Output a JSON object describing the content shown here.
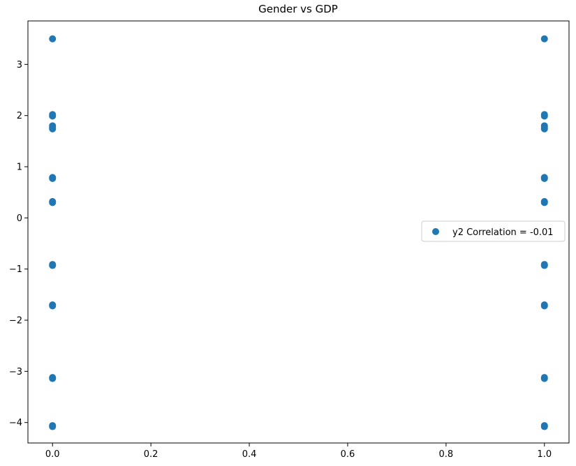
{
  "chart_data": {
    "type": "scatter",
    "title": "Gender vs GDP",
    "xlabel": "",
    "ylabel": "",
    "xlim": [
      -0.05,
      1.05
    ],
    "ylim": [
      -4.4,
      3.85
    ],
    "x_ticks": [
      {
        "value": 0.0,
        "label": "0.0"
      },
      {
        "value": 0.2,
        "label": "0.2"
      },
      {
        "value": 0.4,
        "label": "0.4"
      },
      {
        "value": 0.6,
        "label": "0.6"
      },
      {
        "value": 0.8,
        "label": "0.8"
      },
      {
        "value": 1.0,
        "label": "1.0"
      }
    ],
    "y_ticks": [
      {
        "value": -4,
        "label": "−4"
      },
      {
        "value": -3,
        "label": "−3"
      },
      {
        "value": -2,
        "label": "−2"
      },
      {
        "value": -1,
        "label": "−1"
      },
      {
        "value": 0,
        "label": "0"
      },
      {
        "value": 1,
        "label": "1"
      },
      {
        "value": 2,
        "label": "2"
      },
      {
        "value": 3,
        "label": "3"
      }
    ],
    "grid": false,
    "legend": {
      "placement": "center-right",
      "label": "y2 Correlation = -0.01"
    },
    "series": [
      {
        "color": "#1f77b4",
        "points": [
          {
            "x": 0,
            "y": 3.5
          },
          {
            "x": 0,
            "y": 2.02
          },
          {
            "x": 0,
            "y": 1.99
          },
          {
            "x": 0,
            "y": 1.8
          },
          {
            "x": 0,
            "y": 1.77
          },
          {
            "x": 0,
            "y": 1.74
          },
          {
            "x": 0,
            "y": 0.79
          },
          {
            "x": 0,
            "y": 0.77
          },
          {
            "x": 0,
            "y": 0.32
          },
          {
            "x": 0,
            "y": 0.3
          },
          {
            "x": 0,
            "y": -0.91
          },
          {
            "x": 0,
            "y": -0.93
          },
          {
            "x": 0,
            "y": -1.7
          },
          {
            "x": 0,
            "y": -1.72
          },
          {
            "x": 0,
            "y": -3.12
          },
          {
            "x": 0,
            "y": -3.14
          },
          {
            "x": 0,
            "y": -4.06
          },
          {
            "x": 0,
            "y": -4.08
          },
          {
            "x": 1,
            "y": 3.5
          },
          {
            "x": 1,
            "y": 2.02
          },
          {
            "x": 1,
            "y": 1.99
          },
          {
            "x": 1,
            "y": 1.8
          },
          {
            "x": 1,
            "y": 1.77
          },
          {
            "x": 1,
            "y": 1.74
          },
          {
            "x": 1,
            "y": 0.79
          },
          {
            "x": 1,
            "y": 0.77
          },
          {
            "x": 1,
            "y": 0.32
          },
          {
            "x": 1,
            "y": 0.3
          },
          {
            "x": 1,
            "y": -0.91
          },
          {
            "x": 1,
            "y": -0.93
          },
          {
            "x": 1,
            "y": -1.7
          },
          {
            "x": 1,
            "y": -1.72
          },
          {
            "x": 1,
            "y": -3.12
          },
          {
            "x": 1,
            "y": -3.14
          },
          {
            "x": 1,
            "y": -4.06
          },
          {
            "x": 1,
            "y": -4.08
          }
        ]
      }
    ]
  }
}
